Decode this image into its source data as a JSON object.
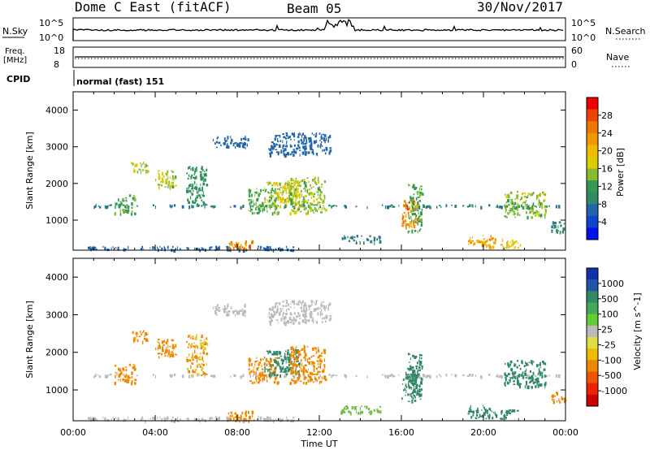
{
  "header": {
    "title": "Dome C East (fitACF)",
    "beam": "Beam 05",
    "date": "30/Nov/2017"
  },
  "top_panels": {
    "nsky_label": "N.Sky",
    "nsky_ticks": [
      "10^5",
      "10^0"
    ],
    "nsearch_label": "N.Search",
    "nsearch_ticks": [
      "10^5",
      "10^0"
    ],
    "freq_label_1": "Freq.",
    "freq_label_2": "[MHz]",
    "freq_ticks": [
      "18",
      "8"
    ],
    "nave_label": "Nave",
    "nave_ticks": [
      "60",
      "0"
    ],
    "cpid_label": "CPID",
    "cpid_value": "normal (fast) 151"
  },
  "axes": {
    "ylabel": "Slant Range [km]",
    "yticks": [
      "4000",
      "3000",
      "2000",
      "1000"
    ],
    "xlabel": "Time UT",
    "xticks": [
      "00:00",
      "04:00",
      "08:00",
      "12:00",
      "16:00",
      "20:00",
      "00:00"
    ]
  },
  "colorbars": {
    "power": {
      "label": "Power [dB]",
      "ticks": [
        "28",
        "24",
        "20",
        "16",
        "12",
        "8",
        "4"
      ],
      "colors": [
        "#ee0000",
        "#ee4400",
        "#ee7700",
        "#ee9900",
        "#eebb00",
        "#ddcc00",
        "#88bb33",
        "#339955",
        "#338866",
        "#2266aa",
        "#1144cc",
        "#0011ee"
      ]
    },
    "velocity": {
      "label": "Velocity [m s^-1]",
      "ticks": [
        "1000",
        "500",
        "100",
        "25",
        "-25",
        "-100",
        "-500",
        "-1000"
      ],
      "colors": [
        "#1133aa",
        "#2255aa",
        "#338866",
        "#44aa55",
        "#66cc33",
        "#bbbbbb",
        "#dddd44",
        "#eebb00",
        "#ee8800",
        "#ee5500",
        "#ee2200",
        "#cc0000"
      ]
    }
  },
  "chart_data": [
    {
      "type": "heatmap",
      "name": "Power",
      "xlabel": "Time UT",
      "ylabel": "Slant Range [km]",
      "xlim": [
        0,
        24
      ],
      "ylim": [
        180,
        4500
      ],
      "colorbar_range": [
        0,
        30
      ],
      "colorbar_label": "Power [dB]",
      "regions": [
        {
          "t0": 1.0,
          "t1": 23.9,
          "r0": 1380,
          "r1": 1440,
          "level": 8
        },
        {
          "t0": 0.5,
          "t1": 11.0,
          "r0": 200,
          "r1": 300,
          "level": 6
        },
        {
          "t0": 2.0,
          "t1": 3.0,
          "r0": 1200,
          "r1": 1700,
          "level": 12
        },
        {
          "t0": 2.8,
          "t1": 3.6,
          "r0": 2300,
          "r1": 2600,
          "level": 16
        },
        {
          "t0": 4.0,
          "t1": 5.0,
          "r0": 1900,
          "r1": 2400,
          "level": 14
        },
        {
          "t0": 5.5,
          "t1": 6.5,
          "r0": 1400,
          "r1": 2500,
          "level": 10
        },
        {
          "t0": 6.8,
          "t1": 8.5,
          "r0": 3000,
          "r1": 3300,
          "level": 6
        },
        {
          "t0": 7.5,
          "t1": 8.8,
          "r0": 200,
          "r1": 450,
          "level": 22
        },
        {
          "t0": 8.5,
          "t1": 10.0,
          "r0": 1200,
          "r1": 1900,
          "level": 12
        },
        {
          "t0": 9.3,
          "t1": 11.0,
          "r0": 1400,
          "r1": 2100,
          "level": 16
        },
        {
          "t0": 9.5,
          "t1": 12.5,
          "r0": 2800,
          "r1": 3400,
          "level": 6
        },
        {
          "t0": 10.5,
          "t1": 12.3,
          "r0": 1200,
          "r1": 2200,
          "level": 14
        },
        {
          "t0": 13.0,
          "t1": 15.0,
          "r0": 400,
          "r1": 600,
          "level": 8
        },
        {
          "t0": 16.0,
          "t1": 16.8,
          "r0": 800,
          "r1": 1600,
          "level": 22
        },
        {
          "t0": 16.3,
          "t1": 17.0,
          "r0": 700,
          "r1": 2000,
          "level": 12
        },
        {
          "t0": 19.2,
          "t1": 20.6,
          "r0": 250,
          "r1": 600,
          "level": 20
        },
        {
          "t0": 20.8,
          "t1": 21.8,
          "r0": 250,
          "r1": 500,
          "level": 18
        },
        {
          "t0": 21.0,
          "t1": 23.0,
          "r0": 1100,
          "r1": 1800,
          "level": 14
        },
        {
          "t0": 23.3,
          "t1": 24.0,
          "r0": 700,
          "r1": 1000,
          "level": 8
        }
      ]
    },
    {
      "type": "heatmap",
      "name": "Velocity",
      "xlabel": "Time UT",
      "ylabel": "Slant Range [km]",
      "xlim": [
        0,
        24
      ],
      "ylim": [
        180,
        4500
      ],
      "colorbar_label": "Velocity [m s^-1]",
      "regions": [
        {
          "t0": 1.0,
          "t1": 23.9,
          "r0": 1380,
          "r1": 1440,
          "level": 0
        },
        {
          "t0": 0.5,
          "t1": 11.0,
          "r0": 200,
          "r1": 300,
          "level": 20
        },
        {
          "t0": 2.0,
          "t1": 3.0,
          "r0": 1200,
          "r1": 1700,
          "level": -200
        },
        {
          "t0": 2.8,
          "t1": 3.6,
          "r0": 2300,
          "r1": 2600,
          "level": -300
        },
        {
          "t0": 4.0,
          "t1": 5.0,
          "r0": 1900,
          "r1": 2400,
          "level": -200
        },
        {
          "t0": 5.5,
          "t1": 6.5,
          "r0": 1400,
          "r1": 2500,
          "level": -100
        },
        {
          "t0": 6.8,
          "t1": 8.5,
          "r0": 3000,
          "r1": 3300,
          "level": 0
        },
        {
          "t0": 7.5,
          "t1": 8.8,
          "r0": 200,
          "r1": 450,
          "level": -120
        },
        {
          "t0": 8.5,
          "t1": 10.0,
          "r0": 1200,
          "r1": 1900,
          "level": -400
        },
        {
          "t0": 9.3,
          "t1": 11.0,
          "r0": 1400,
          "r1": 2100,
          "level": 300
        },
        {
          "t0": 9.5,
          "t1": 12.5,
          "r0": 2800,
          "r1": 3400,
          "level": 0
        },
        {
          "t0": 10.5,
          "t1": 12.3,
          "r0": 1200,
          "r1": 2200,
          "level": -400
        },
        {
          "t0": 13.0,
          "t1": 15.0,
          "r0": 400,
          "r1": 600,
          "level": 60
        },
        {
          "t0": 16.0,
          "t1": 16.8,
          "r0": 800,
          "r1": 1600,
          "level": 150
        },
        {
          "t0": 16.3,
          "t1": 17.0,
          "r0": 700,
          "r1": 2000,
          "level": 150
        },
        {
          "t0": 19.2,
          "t1": 20.6,
          "r0": 250,
          "r1": 600,
          "level": 150
        },
        {
          "t0": 20.8,
          "t1": 21.8,
          "r0": 250,
          "r1": 500,
          "level": 150
        },
        {
          "t0": 21.0,
          "t1": 23.0,
          "r0": 1100,
          "r1": 1800,
          "level": 150
        },
        {
          "t0": 23.3,
          "t1": 24.0,
          "r0": 700,
          "r1": 1000,
          "level": -300
        }
      ]
    }
  ]
}
